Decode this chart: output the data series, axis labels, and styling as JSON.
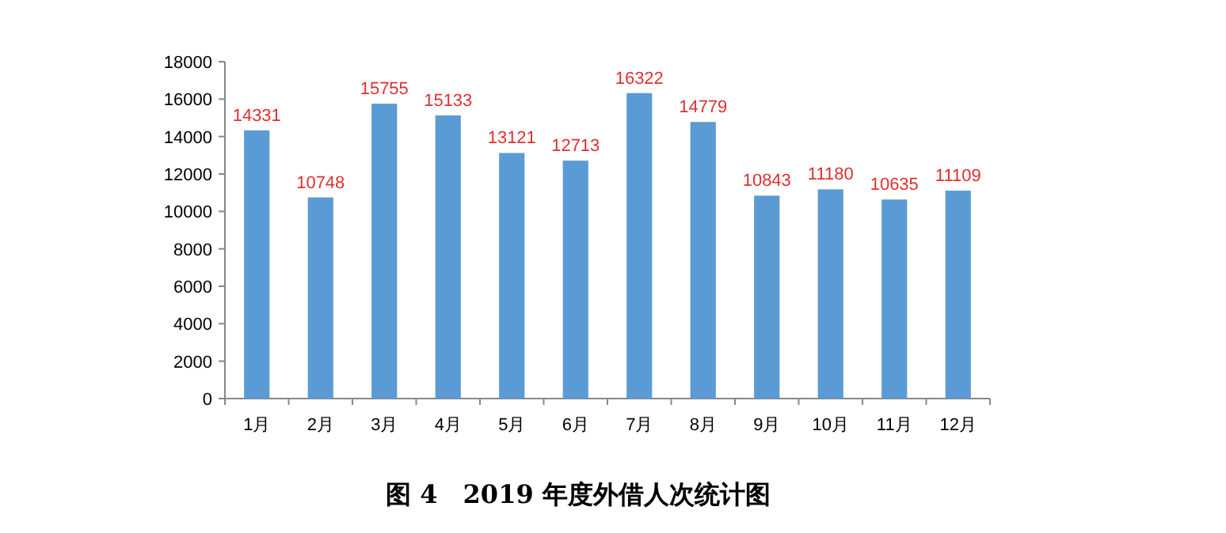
{
  "chart_data": {
    "type": "bar",
    "title": "图 4　2019 年度外借人次统计图",
    "categories": [
      "1月",
      "2月",
      "3月",
      "4月",
      "5月",
      "6月",
      "7月",
      "8月",
      "9月",
      "10月",
      "11月",
      "12月"
    ],
    "values": [
      14331,
      10748,
      15755,
      15133,
      13121,
      12713,
      16322,
      14779,
      10843,
      11180,
      10635,
      11109
    ],
    "color": "#5b9bd5",
    "ylim": [
      0,
      18000
    ],
    "yticks": [
      0,
      2000,
      4000,
      6000,
      8000,
      10000,
      12000,
      14000,
      16000,
      18000
    ],
    "data_labels": true,
    "grid": false
  }
}
